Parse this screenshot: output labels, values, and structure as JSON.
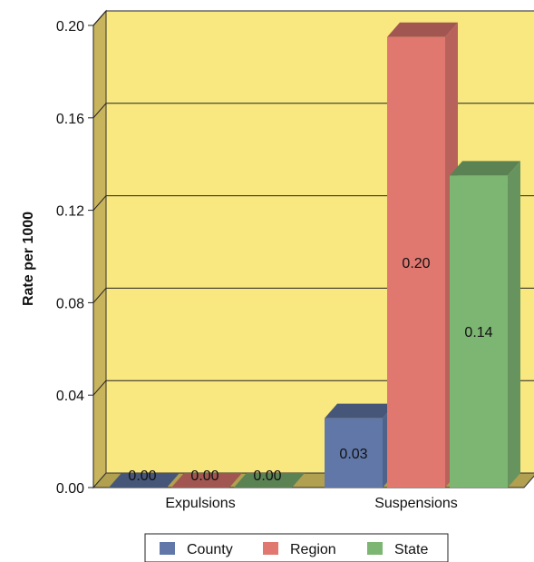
{
  "chart_data": {
    "type": "bar",
    "ylabel": "Rate per 1000",
    "ylim": [
      0,
      0.2
    ],
    "yticks": [
      "0.00",
      "0.04",
      "0.08",
      "0.12",
      "0.16",
      "0.20"
    ],
    "ytick_values": [
      0,
      0.04,
      0.08,
      0.12,
      0.16,
      0.2
    ],
    "grid": true,
    "legend_position": "bottom",
    "categories": [
      "Expulsions",
      "Suspensions"
    ],
    "series": [
      {
        "name": "County",
        "values": [
          0.0,
          0.03
        ],
        "labels": [
          "0.00",
          "0.03"
        ],
        "color": "#6077A8"
      },
      {
        "name": "Region",
        "values": [
          0.0,
          0.195
        ],
        "labels": [
          "0.00",
          "0.20"
        ],
        "color": "#E07870"
      },
      {
        "name": "State",
        "values": [
          0.0,
          0.135
        ],
        "labels": [
          "0.00",
          "0.14"
        ],
        "color": "#7DB573"
      }
    ],
    "plot_background": "#F9E77F",
    "floor_color": "#B0A050"
  }
}
